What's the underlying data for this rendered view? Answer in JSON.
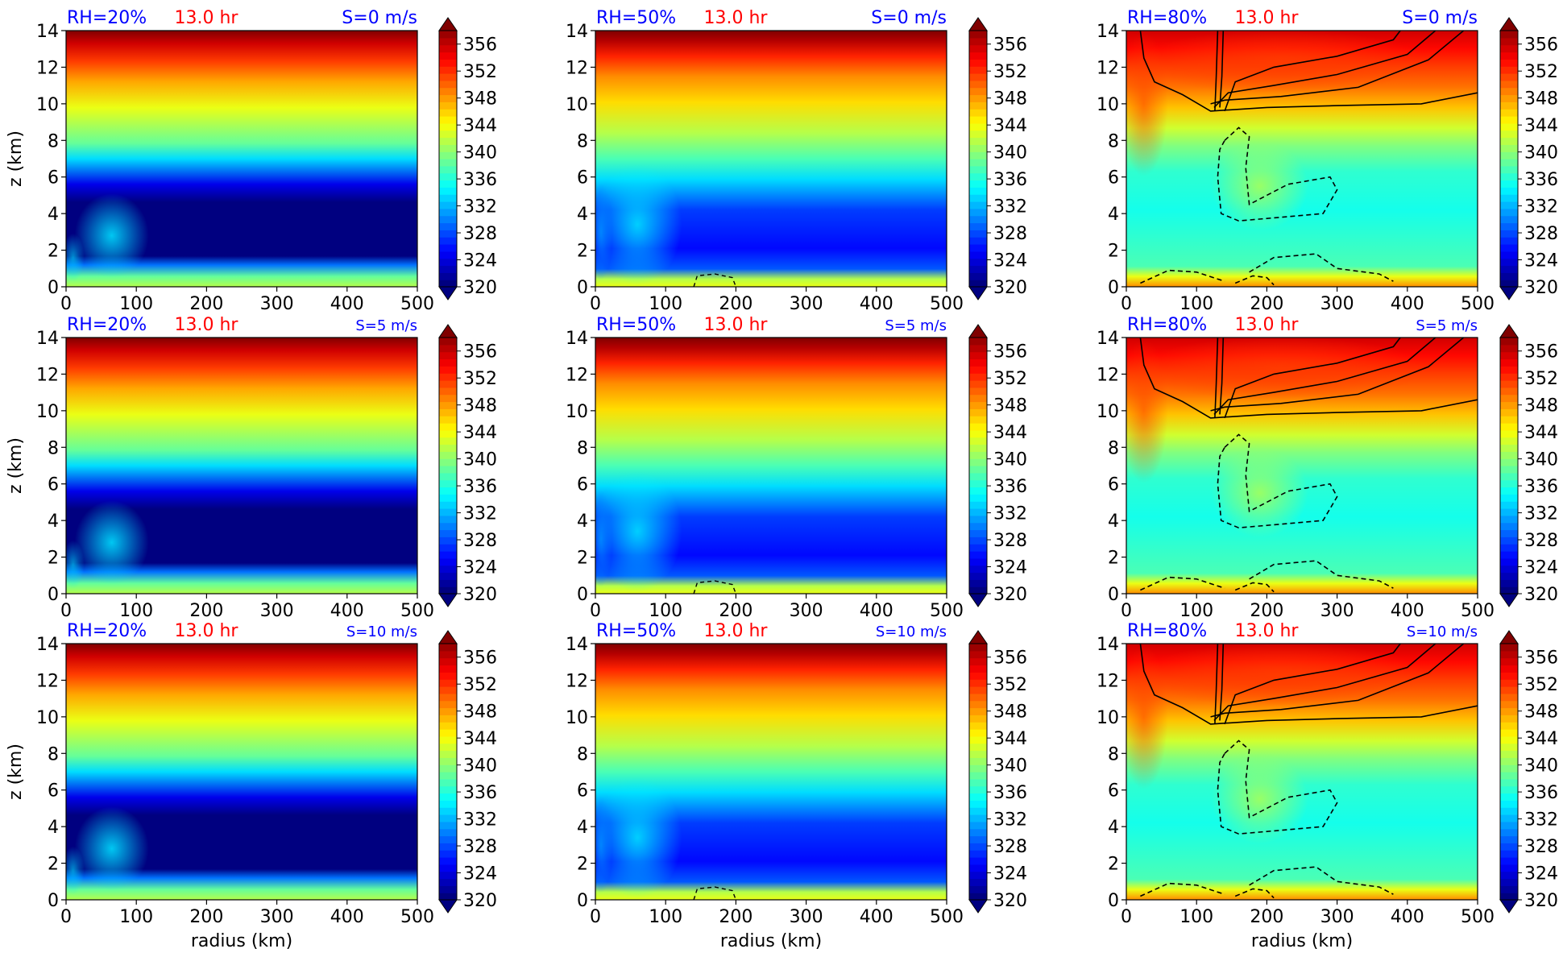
{
  "figure": {
    "xlabel": "radius (km)",
    "ylabel": "z (km)"
  },
  "colorbar": {
    "ticks": [
      356,
      352,
      348,
      344,
      340,
      336,
      332,
      328,
      324,
      320
    ],
    "colormap": [
      "#00007f",
      "#0000ff",
      "#007fff",
      "#00ffff",
      "#7fff7f",
      "#ffff00",
      "#ff7f00",
      "#ff0000",
      "#7f0000"
    ],
    "range": [
      320,
      358
    ],
    "extend": "both"
  },
  "chart_data": [
    {
      "type": "contourf",
      "row": 0,
      "col": 0,
      "rh_label": "RH=20%",
      "time_label": "13.0 hr",
      "shear_label": "S=0 m/s",
      "x_ticks": [
        0,
        100,
        200,
        300,
        400,
        500
      ],
      "y_ticks": [
        0,
        2,
        4,
        6,
        8,
        10,
        12,
        14
      ],
      "xlim": [
        0,
        500
      ],
      "ylim": [
        0,
        14
      ],
      "rh_percent": 20,
      "shear_ms": 0,
      "time_hr": 13.0,
      "line_contours": false
    },
    {
      "type": "contourf",
      "row": 0,
      "col": 1,
      "rh_label": "RH=50%",
      "time_label": "13.0 hr",
      "shear_label": "S=0 m/s",
      "x_ticks": [
        0,
        100,
        200,
        300,
        400,
        500
      ],
      "y_ticks": [
        0,
        2,
        4,
        6,
        8,
        10,
        12,
        14
      ],
      "xlim": [
        0,
        500
      ],
      "ylim": [
        0,
        14
      ],
      "rh_percent": 50,
      "shear_ms": 0,
      "time_hr": 13.0,
      "line_contours": false
    },
    {
      "type": "contourf",
      "row": 0,
      "col": 2,
      "rh_label": "RH=80%",
      "time_label": "13.0 hr",
      "shear_label": "S=0 m/s",
      "x_ticks": [
        0,
        100,
        200,
        300,
        400,
        500
      ],
      "y_ticks": [
        0,
        2,
        4,
        6,
        8,
        10,
        12,
        14
      ],
      "xlim": [
        0,
        500
      ],
      "ylim": [
        0,
        14
      ],
      "rh_percent": 80,
      "shear_ms": 0,
      "time_hr": 13.0,
      "line_contours": true
    },
    {
      "type": "contourf",
      "row": 1,
      "col": 0,
      "rh_label": "RH=20%",
      "time_label": "13.0 hr",
      "shear_label": "S=5 m/s",
      "x_ticks": [
        0,
        100,
        200,
        300,
        400,
        500
      ],
      "y_ticks": [
        0,
        2,
        4,
        6,
        8,
        10,
        12,
        14
      ],
      "xlim": [
        0,
        500
      ],
      "ylim": [
        0,
        14
      ],
      "rh_percent": 20,
      "shear_ms": 5,
      "time_hr": 13.0,
      "line_contours": false
    },
    {
      "type": "contourf",
      "row": 1,
      "col": 1,
      "rh_label": "RH=50%",
      "time_label": "13.0 hr",
      "shear_label": "S=5 m/s",
      "x_ticks": [
        0,
        100,
        200,
        300,
        400,
        500
      ],
      "y_ticks": [
        0,
        2,
        4,
        6,
        8,
        10,
        12,
        14
      ],
      "xlim": [
        0,
        500
      ],
      "ylim": [
        0,
        14
      ],
      "rh_percent": 50,
      "shear_ms": 5,
      "time_hr": 13.0,
      "line_contours": false
    },
    {
      "type": "contourf",
      "row": 1,
      "col": 2,
      "rh_label": "RH=80%",
      "time_label": "13.0 hr",
      "shear_label": "S=5 m/s",
      "x_ticks": [
        0,
        100,
        200,
        300,
        400,
        500
      ],
      "y_ticks": [
        0,
        2,
        4,
        6,
        8,
        10,
        12,
        14
      ],
      "xlim": [
        0,
        500
      ],
      "ylim": [
        0,
        14
      ],
      "rh_percent": 80,
      "shear_ms": 5,
      "time_hr": 13.0,
      "line_contours": true
    },
    {
      "type": "contourf",
      "row": 2,
      "col": 0,
      "rh_label": "RH=20%",
      "time_label": "13.0 hr",
      "shear_label": "S=10 m/s",
      "x_ticks": [
        0,
        100,
        200,
        300,
        400,
        500
      ],
      "y_ticks": [
        0,
        2,
        4,
        6,
        8,
        10,
        12,
        14
      ],
      "xlim": [
        0,
        500
      ],
      "ylim": [
        0,
        14
      ],
      "rh_percent": 20,
      "shear_ms": 10,
      "time_hr": 13.0,
      "line_contours": false
    },
    {
      "type": "contourf",
      "row": 2,
      "col": 1,
      "rh_label": "RH=50%",
      "time_label": "13.0 hr",
      "shear_label": "S=10 m/s",
      "x_ticks": [
        0,
        100,
        200,
        300,
        400,
        500
      ],
      "y_ticks": [
        0,
        2,
        4,
        6,
        8,
        10,
        12,
        14
      ],
      "xlim": [
        0,
        500
      ],
      "ylim": [
        0,
        14
      ],
      "rh_percent": 50,
      "shear_ms": 10,
      "time_hr": 13.0,
      "line_contours": false
    },
    {
      "type": "contourf",
      "row": 2,
      "col": 2,
      "rh_label": "RH=80%",
      "time_label": "13.0 hr",
      "shear_label": "S=10 m/s",
      "x_ticks": [
        0,
        100,
        200,
        300,
        400,
        500
      ],
      "y_ticks": [
        0,
        2,
        4,
        6,
        8,
        10,
        12,
        14
      ],
      "xlim": [
        0,
        500
      ],
      "ylim": [
        0,
        14
      ],
      "rh_percent": 80,
      "shear_ms": 10,
      "time_hr": 13.0,
      "line_contours": true
    }
  ]
}
